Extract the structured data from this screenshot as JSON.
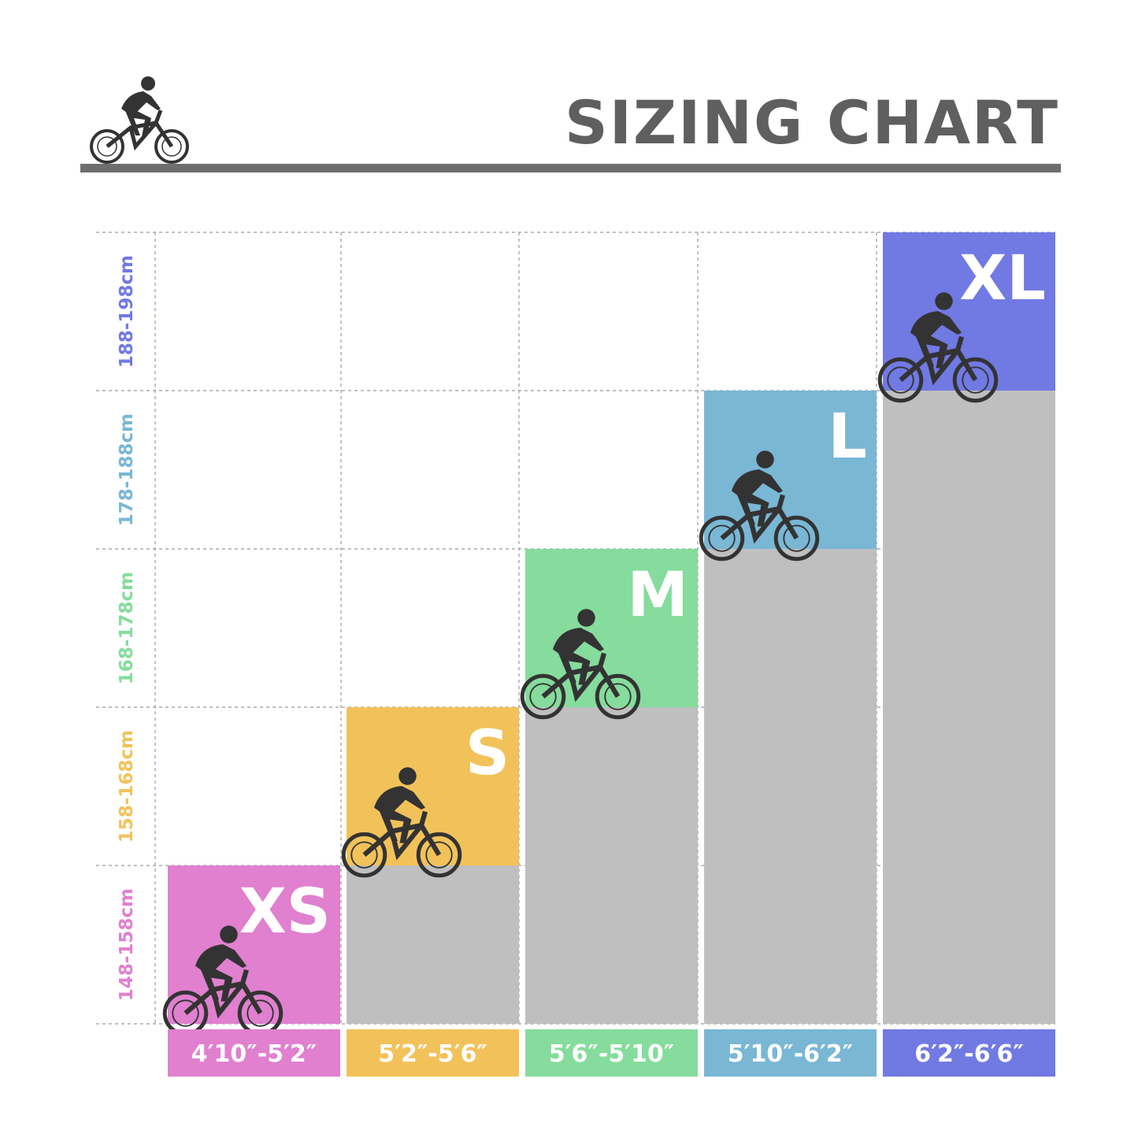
{
  "title": "SIZING CHART",
  "colors": {
    "xs": "#e080cf",
    "s": "#f2c25a",
    "m": "#85dc9c",
    "l": "#79b7d5",
    "xl": "#7179e3",
    "grey_fill": "#bfbfbf",
    "title": "#5f5f5f",
    "rider": "#333333"
  },
  "icons": {
    "header": "cyclist-icon",
    "cell": "cyclist-icon"
  },
  "chart_data": {
    "type": "bar",
    "categories": [
      "4′10″-5′2″",
      "5′2″-5′6″",
      "5′6″-5′10″",
      "5′10″-6′2″",
      "6′2″-6′6″"
    ],
    "sizes": [
      "XS",
      "S",
      "M",
      "L",
      "XL"
    ],
    "height_bands": [
      "148-158cm",
      "158-168cm",
      "168-178cm",
      "178-188cm",
      "188-198cm"
    ],
    "values": [
      1,
      2,
      3,
      4,
      5
    ],
    "ylim": [
      0,
      5
    ],
    "grid": true
  }
}
